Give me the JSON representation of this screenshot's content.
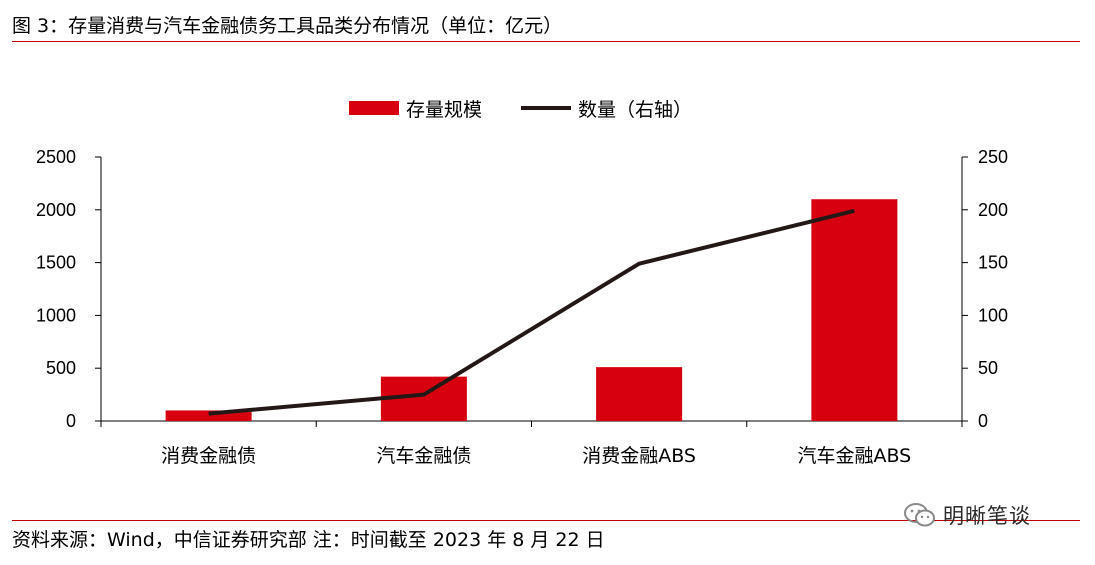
{
  "figure": {
    "title": "图 3：存量消费与汽车金融债务工具品类分布情况（单位：亿元）",
    "source_note": "资料来源：Wind，中信证券研究部  注：时间截至 2023 年 8 月 22 日",
    "watermark": "明晰笔谈",
    "accent_color": "#c00000"
  },
  "chart_data": {
    "type": "bar",
    "categories": [
      "消费金融债",
      "汽车金融债",
      "消费金融ABS",
      "汽车金融ABS"
    ],
    "series": [
      {
        "name": "存量规模",
        "type": "bar",
        "axis": "left",
        "color": "#d7000f",
        "values": [
          100,
          420,
          510,
          2100
        ]
      },
      {
        "name": "数量（右轴）",
        "type": "line",
        "axis": "right",
        "color": "#231815",
        "values": [
          7,
          25,
          149,
          199
        ]
      }
    ],
    "y_left": {
      "range": [
        0,
        2500
      ],
      "ticks": [
        "0",
        "500",
        "1000",
        "1500",
        "2000",
        "2500"
      ]
    },
    "y_right": {
      "range": [
        0,
        250
      ],
      "ticks": [
        "0",
        "50",
        "100",
        "150",
        "200",
        "250"
      ]
    },
    "title": "",
    "xlabel": "",
    "ylabel": "",
    "grid": false,
    "legend_position": "top-center"
  }
}
